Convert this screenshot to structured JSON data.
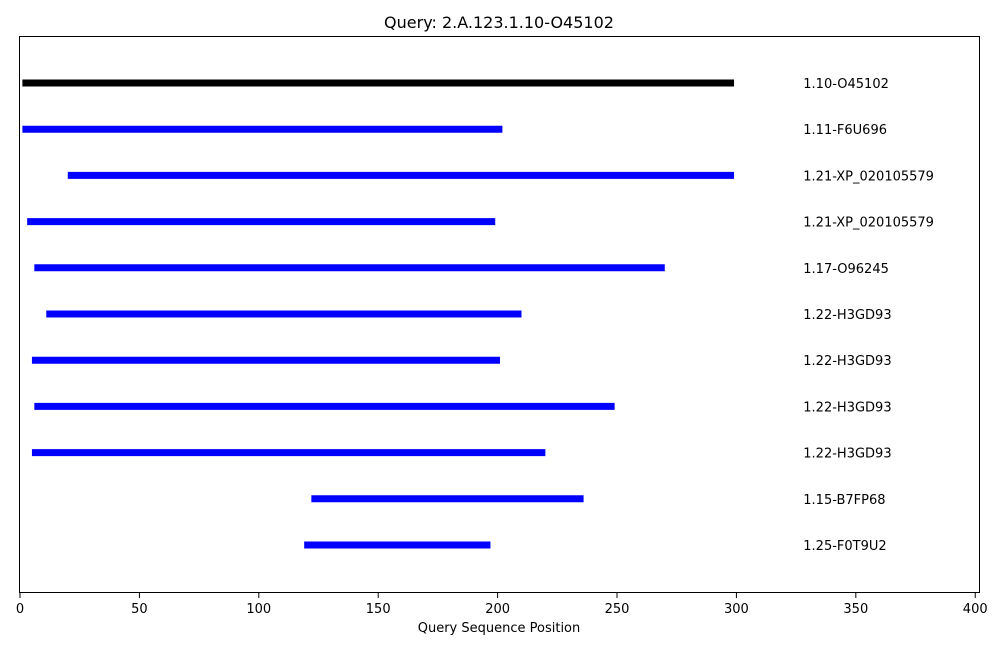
{
  "chart_data": {
    "type": "bar",
    "orientation": "horizontal-range",
    "title": "Query: 2.A.123.1.10-O45102",
    "xlabel": "Query Sequence Position",
    "ylabel": "",
    "xlim": [
      0,
      402
    ],
    "xticks": [
      0,
      50,
      100,
      150,
      200,
      250,
      300,
      350,
      400
    ],
    "grid": false,
    "label_x": 328,
    "series": [
      {
        "label": "1.10-O45102",
        "start": 1,
        "end": 299,
        "color": "#000000"
      },
      {
        "label": "1.11-F6U696",
        "start": 1,
        "end": 202,
        "color": "#0000ff"
      },
      {
        "label": "1.21-XP_020105579",
        "start": 20,
        "end": 299,
        "color": "#0000ff"
      },
      {
        "label": "1.21-XP_020105579",
        "start": 3,
        "end": 199,
        "color": "#0000ff"
      },
      {
        "label": "1.17-O96245",
        "start": 6,
        "end": 270,
        "color": "#0000ff"
      },
      {
        "label": "1.22-H3GD93",
        "start": 11,
        "end": 210,
        "color": "#0000ff"
      },
      {
        "label": "1.22-H3GD93",
        "start": 5,
        "end": 201,
        "color": "#0000ff"
      },
      {
        "label": "1.22-H3GD93",
        "start": 6,
        "end": 249,
        "color": "#0000ff"
      },
      {
        "label": "1.22-H3GD93",
        "start": 5,
        "end": 220,
        "color": "#0000ff"
      },
      {
        "label": "1.15-B7FP68",
        "start": 122,
        "end": 236,
        "color": "#0000ff"
      },
      {
        "label": "1.25-F0T9U2",
        "start": 119,
        "end": 197,
        "color": "#0000ff"
      }
    ]
  }
}
